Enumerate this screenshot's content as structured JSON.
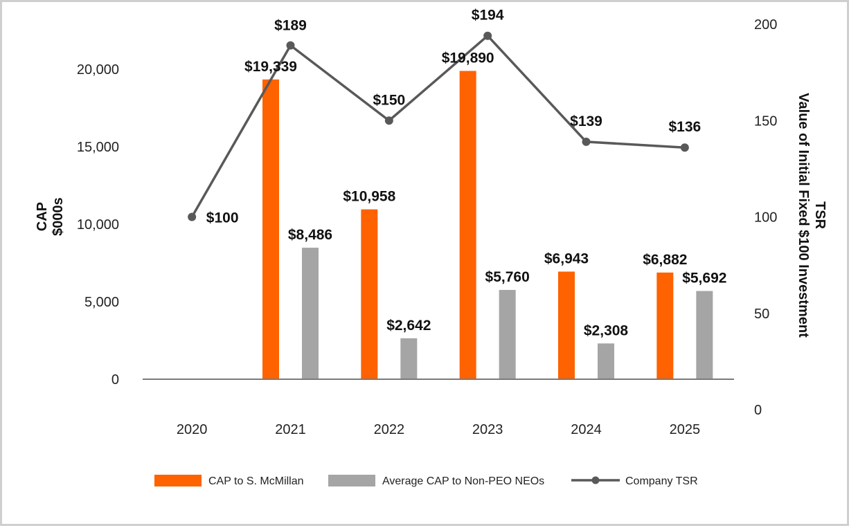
{
  "chart_data": {
    "type": "bar",
    "categories": [
      "2020",
      "2021",
      "2022",
      "2023",
      "2024",
      "2025"
    ],
    "series": [
      {
        "name": "CAP to S. McMillan",
        "kind": "bar",
        "axis": "left",
        "color": "#ff6200",
        "values": [
          null,
          19339,
          10958,
          19890,
          6943,
          6882
        ],
        "labels": [
          "",
          "$19,339",
          "$10,958",
          "$19,890",
          "$6,943",
          "$6,882"
        ]
      },
      {
        "name": "Average CAP to Non-PEO NEOs",
        "kind": "bar",
        "axis": "left",
        "color": "#a5a5a5",
        "values": [
          null,
          8486,
          2642,
          5760,
          2308,
          5692
        ],
        "labels": [
          "",
          "$8,486",
          "$2,642",
          "$5,760",
          "$2,308",
          "$5,692"
        ]
      },
      {
        "name": "Company TSR",
        "kind": "line",
        "axis": "right",
        "color": "#595959",
        "values": [
          100,
          189,
          150,
          194,
          139,
          136
        ],
        "labels": [
          "$100",
          "$189",
          "$150",
          "$194",
          "$139",
          "$136"
        ]
      }
    ],
    "left_axis": {
      "title_lines": [
        "CAP",
        "$000s"
      ],
      "ylim": [
        0,
        22000
      ],
      "ticks": [
        0,
        5000,
        10000,
        15000,
        20000
      ],
      "tick_labels": [
        "0",
        "5,000",
        "10,000",
        "15,000",
        "20,000"
      ]
    },
    "right_axis": {
      "title_lines": [
        "TSR",
        "Value of Initial Fixed $100 Investment"
      ],
      "ylim": [
        0,
        200
      ],
      "ticks": [
        0,
        50,
        100,
        150,
        200
      ],
      "tick_labels": [
        "0",
        "50",
        "100",
        "150",
        "200"
      ]
    },
    "legend": {
      "position": "bottom",
      "items": [
        {
          "label": "CAP to S. McMillan",
          "symbol": "bar",
          "color": "#ff6200"
        },
        {
          "label": "Average CAP to Non-PEO NEOs",
          "symbol": "bar",
          "color": "#a5a5a5"
        },
        {
          "label": "Company TSR",
          "symbol": "line-marker",
          "color": "#595959"
        }
      ]
    },
    "grid": false
  }
}
